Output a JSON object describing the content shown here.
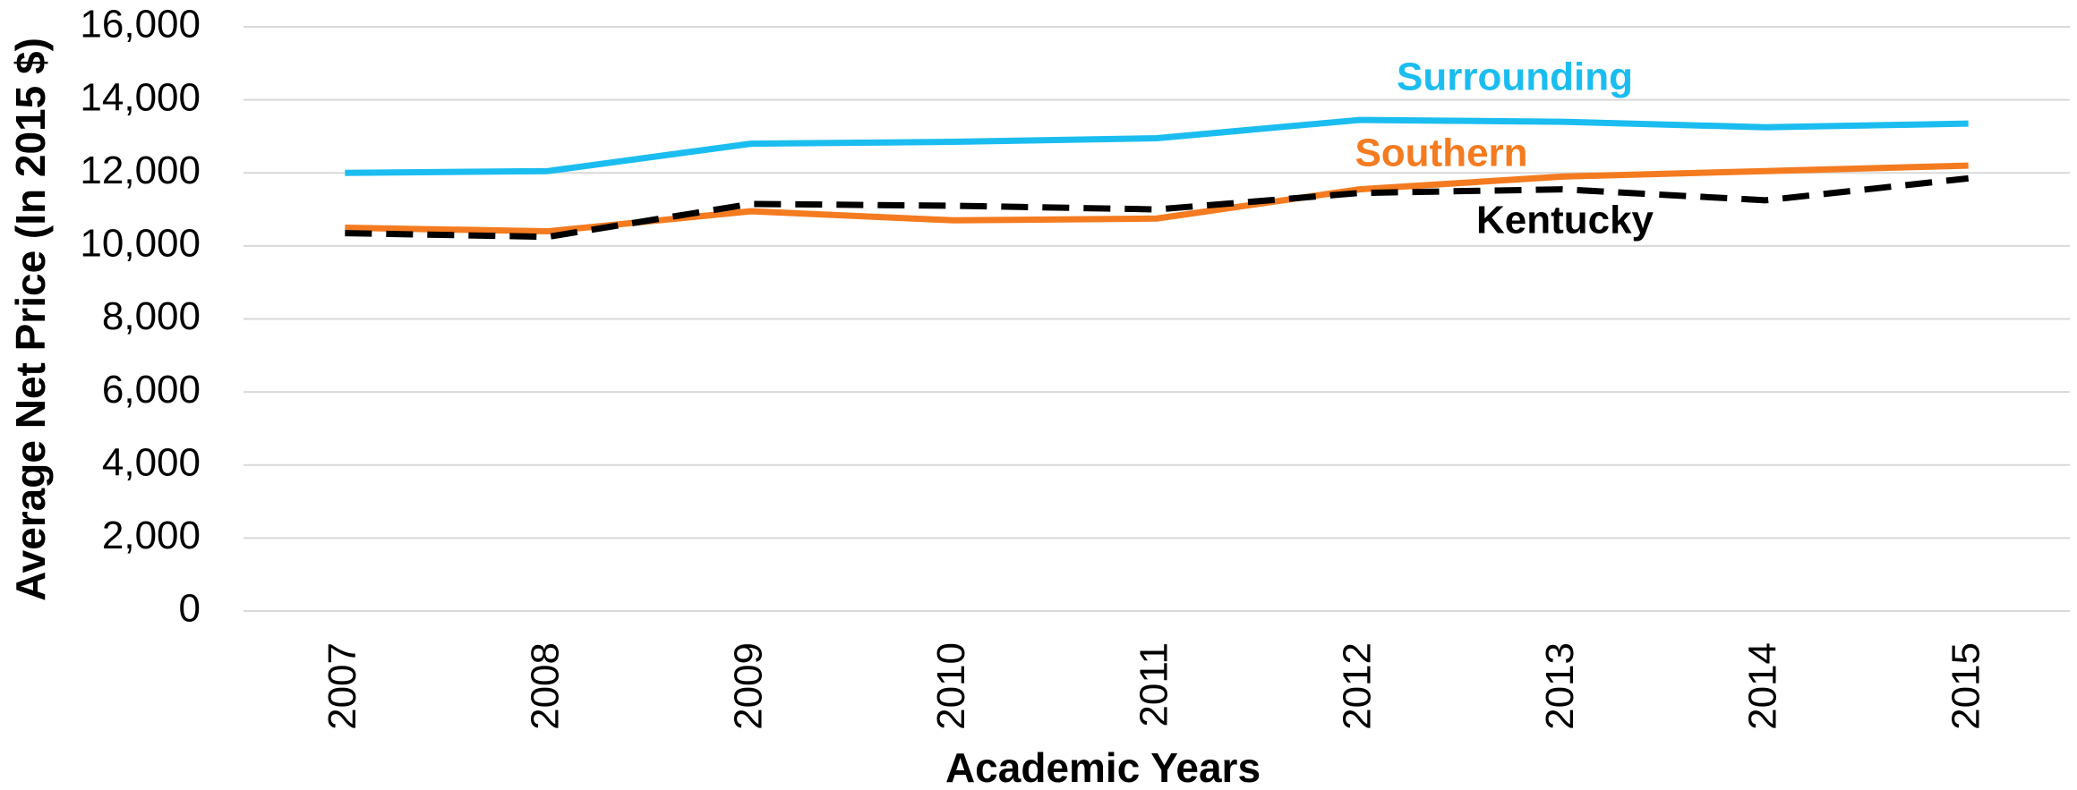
{
  "chart_data": {
    "type": "line",
    "x_label": "Academic Years",
    "y_label": "Average Net Price (In 2015 $)",
    "categories": [
      "2007",
      "2008",
      "2009",
      "2010",
      "2011",
      "2012",
      "2013",
      "2014",
      "2015"
    ],
    "series": [
      {
        "name": "Surrounding",
        "color": "#1bbdf0",
        "values": [
          12000,
          12050,
          12800,
          12850,
          12950,
          13450,
          13400,
          13250,
          13350
        ]
      },
      {
        "name": "Southern",
        "color": "#f47b20",
        "values": [
          10500,
          10400,
          10950,
          10700,
          10750,
          11550,
          11900,
          12050,
          12200
        ]
      },
      {
        "name": "Kentucky",
        "color": "#000000",
        "dashed": true,
        "values": [
          10350,
          10250,
          11150,
          11100,
          11000,
          11450,
          11550,
          11250,
          11850
        ]
      }
    ],
    "ylim": [
      0,
      16000
    ],
    "yticks": [
      {
        "value": 0,
        "label": "0"
      },
      {
        "value": 2000,
        "label": "2,000"
      },
      {
        "value": 4000,
        "label": "4,000"
      },
      {
        "value": 6000,
        "label": "6,000"
      },
      {
        "value": 8000,
        "label": "8,000"
      },
      {
        "value": 10000,
        "label": "10,000"
      },
      {
        "value": 12000,
        "label": "12,000"
      },
      {
        "value": 14000,
        "label": "14,000"
      },
      {
        "value": 16000,
        "label": "16,000"
      }
    ],
    "grid": true
  }
}
